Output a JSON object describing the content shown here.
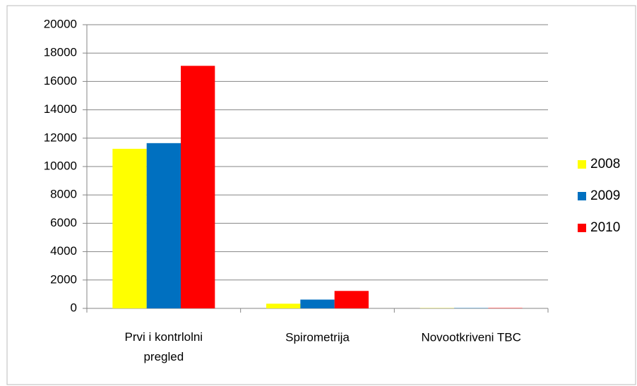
{
  "chart_data": {
    "type": "bar",
    "categories": [
      "Prvi i kontrlolni pregled",
      "Spirometrija",
      "Novootkriveni TBC"
    ],
    "series": [
      {
        "name": "2008",
        "color": "#ffff00",
        "values": [
          11250,
          330,
          15
        ]
      },
      {
        "name": "2009",
        "color": "#0070c0",
        "values": [
          11650,
          620,
          20
        ]
      },
      {
        "name": "2010",
        "color": "#ff0000",
        "values": [
          17100,
          1230,
          25
        ]
      }
    ],
    "ylim": [
      0,
      20000
    ],
    "yticks": [
      0,
      2000,
      4000,
      6000,
      8000,
      10000,
      12000,
      14000,
      16000,
      18000,
      20000
    ],
    "grid": true,
    "legend": "right"
  }
}
